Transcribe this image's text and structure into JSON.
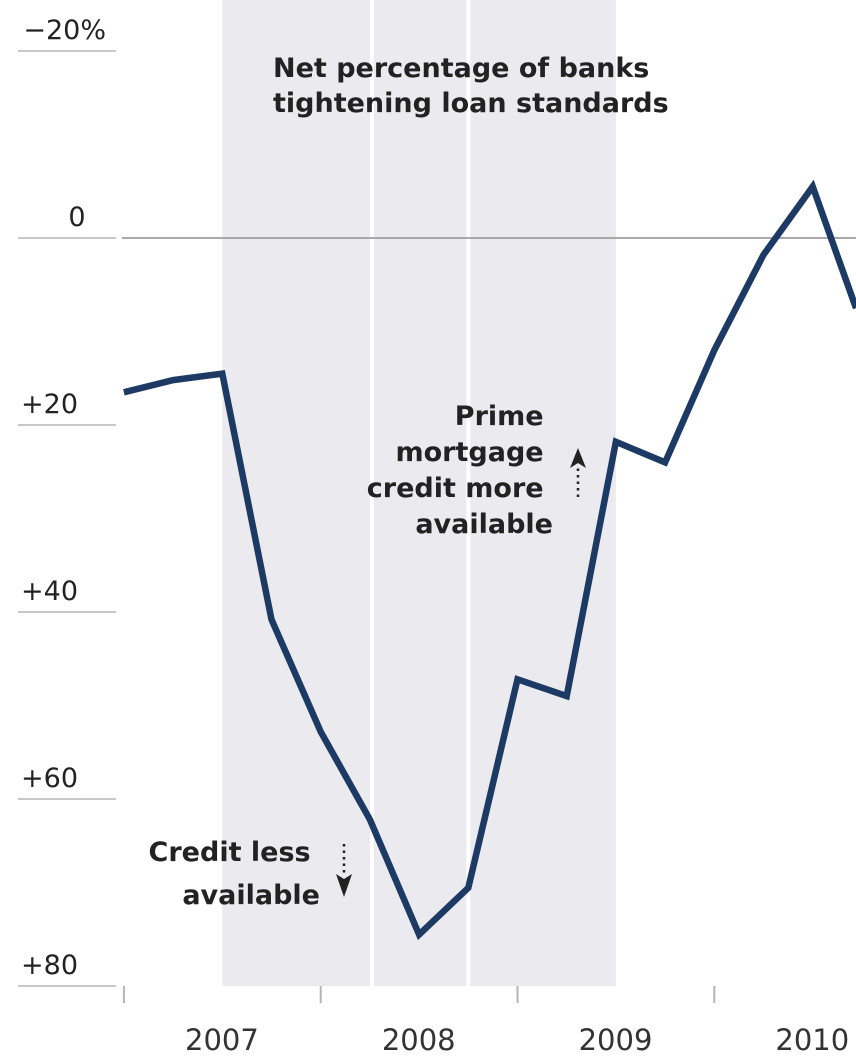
{
  "chart_data": {
    "type": "line",
    "title_lines": [
      "Net percentage of banks",
      "tightening loan standards"
    ],
    "y_ticks": [
      {
        "value": -20,
        "label": "−20%"
      },
      {
        "value": 0,
        "label": "0"
      },
      {
        "value": 20,
        "label": "+20"
      },
      {
        "value": 40,
        "label": "+40"
      },
      {
        "value": 60,
        "label": "+60"
      },
      {
        "value": 80,
        "label": "+80"
      }
    ],
    "ylim": [
      -20,
      80
    ],
    "y_inverted": true,
    "xlim": [
      2006.98,
      2010.72
    ],
    "x_years": [
      2007,
      2008,
      2009,
      2010
    ],
    "shaded_periods": [
      [
        2007.5,
        2008.25
      ],
      [
        2008.27,
        2008.74
      ],
      [
        2008.76,
        2009.5
      ]
    ],
    "series": [
      {
        "color": "#1c3a63",
        "x": [
          2007.0,
          2007.25,
          2007.5,
          2007.75,
          2008.0,
          2008.25,
          2008.5,
          2008.75,
          2009.0,
          2009.25,
          2009.5,
          2009.75,
          2010.0,
          2010.25,
          2010.5,
          2010.72
        ],
        "y": [
          16.5,
          15.2,
          14.5,
          40.8,
          52.8,
          62.2,
          74.5,
          69.5,
          47.2,
          49.0,
          21.8,
          24.0,
          12.0,
          1.8,
          -5.5,
          7.5
        ]
      }
    ],
    "annotations": {
      "prime_lines": [
        "Prime",
        "mortgage",
        "credit more",
        "available"
      ],
      "credit_less_lines": [
        "Credit less",
        "available"
      ]
    },
    "grid": false
  }
}
